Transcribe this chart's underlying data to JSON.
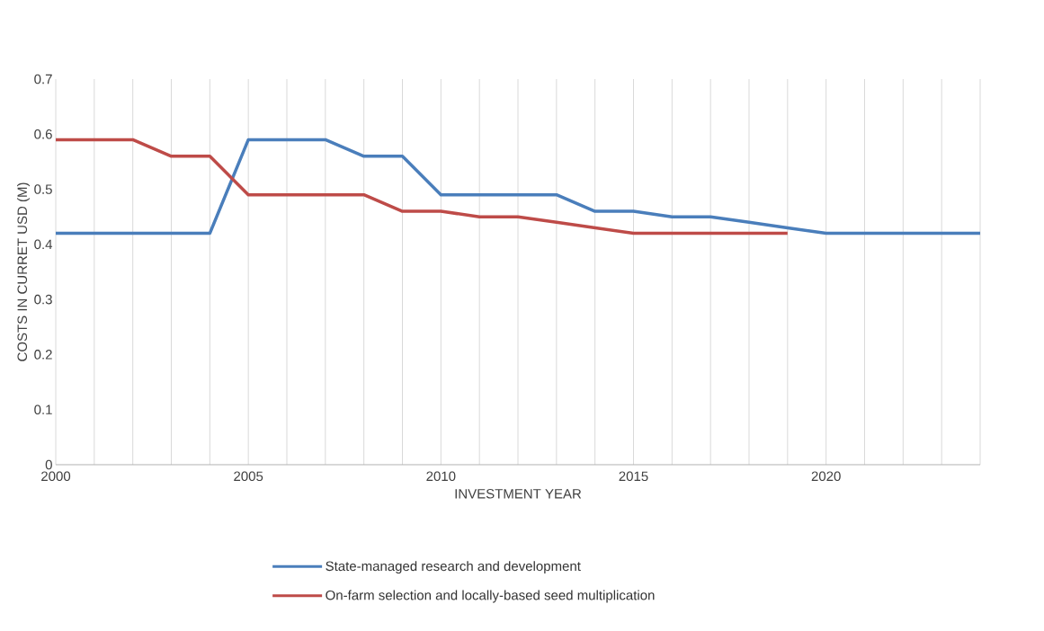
{
  "chart_data": {
    "type": "line",
    "xlabel": "INVESTMENT YEAR",
    "ylabel": "COSTS IN CURRET USD (M)",
    "x": [
      2000,
      2001,
      2002,
      2003,
      2004,
      2005,
      2006,
      2007,
      2008,
      2009,
      2010,
      2011,
      2012,
      2013,
      2014,
      2015,
      2016,
      2017,
      2018,
      2019,
      2020,
      2021,
      2022,
      2023,
      2024
    ],
    "series": [
      {
        "name": "State-managed research and development",
        "color": "#4a7ebb",
        "values": [
          0.42,
          0.42,
          0.42,
          0.42,
          0.42,
          0.59,
          0.59,
          0.59,
          0.56,
          0.56,
          0.49,
          0.49,
          0.49,
          0.49,
          0.46,
          0.46,
          0.45,
          0.45,
          0.44,
          0.43,
          0.42,
          0.42,
          0.42,
          0.42,
          0.42
        ]
      },
      {
        "name": "On-farm selection and locally-based seed multiplication",
        "color": "#be4b48",
        "values": [
          0.59,
          0.59,
          0.59,
          0.56,
          0.56,
          0.49,
          0.49,
          0.49,
          0.49,
          0.46,
          0.46,
          0.45,
          0.45,
          0.44,
          0.43,
          0.42,
          0.42,
          0.42,
          0.42,
          0.42,
          null,
          null,
          null,
          null,
          null
        ]
      }
    ],
    "xlim": [
      2000,
      2024
    ],
    "ylim": [
      0,
      0.7
    ],
    "xticks": [
      2000,
      {
        "value": 2001,
        "label": null
      },
      {
        "value": 2002,
        "label": null
      },
      {
        "value": 2003,
        "label": null
      },
      {
        "value": 2004,
        "label": null
      },
      2005,
      {
        "value": 2006,
        "label": null
      },
      {
        "value": 2007,
        "label": null
      },
      {
        "value": 2008,
        "label": null
      },
      {
        "value": 2009,
        "label": null
      },
      2010,
      {
        "value": 2011,
        "label": null
      },
      {
        "value": 2012,
        "label": null
      },
      {
        "value": 2013,
        "label": null
      },
      {
        "value": 2014,
        "label": null
      },
      2015,
      {
        "value": 2016,
        "label": null
      },
      {
        "value": 2017,
        "label": null
      },
      {
        "value": 2018,
        "label": null
      },
      {
        "value": 2019,
        "label": null
      },
      2020,
      {
        "value": 2021,
        "label": null
      },
      {
        "value": 2022,
        "label": null
      },
      {
        "value": 2023,
        "label": null
      },
      {
        "value": 2024,
        "label": null
      }
    ],
    "yticks": [
      0,
      0.1,
      0.2,
      0.3,
      0.4,
      0.5,
      0.6,
      0.7
    ],
    "grid": "x",
    "legend": "bottom",
    "marker": "none",
    "line_style": "solid"
  }
}
